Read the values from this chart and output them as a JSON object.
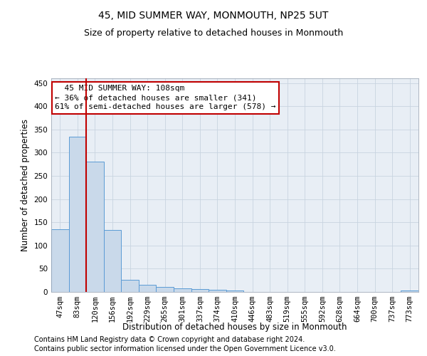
{
  "title": "45, MID SUMMER WAY, MONMOUTH, NP25 5UT",
  "subtitle": "Size of property relative to detached houses in Monmouth",
  "xlabel": "Distribution of detached houses by size in Monmouth",
  "ylabel": "Number of detached properties",
  "bar_labels": [
    "47sqm",
    "83sqm",
    "120sqm",
    "156sqm",
    "192sqm",
    "229sqm",
    "265sqm",
    "301sqm",
    "337sqm",
    "374sqm",
    "410sqm",
    "446sqm",
    "483sqm",
    "519sqm",
    "555sqm",
    "592sqm",
    "628sqm",
    "664sqm",
    "700sqm",
    "737sqm",
    "773sqm"
  ],
  "bar_values": [
    135,
    335,
    280,
    133,
    26,
    15,
    11,
    7,
    6,
    5,
    3,
    0,
    0,
    0,
    0,
    0,
    0,
    0,
    0,
    0,
    3
  ],
  "bar_color": "#c9d9ea",
  "bar_edge_color": "#5b9bd5",
  "vline_x": 1.5,
  "vline_color": "#c00000",
  "annotation_line1": "  45 MID SUMMER WAY: 108sqm",
  "annotation_line2": "← 36% of detached houses are smaller (341)",
  "annotation_line3": "61% of semi-detached houses are larger (578) →",
  "annotation_box_color": "#ffffff",
  "annotation_box_edgecolor": "#c00000",
  "ylim": [
    0,
    460
  ],
  "yticks": [
    0,
    50,
    100,
    150,
    200,
    250,
    300,
    350,
    400,
    450
  ],
  "footer1": "Contains HM Land Registry data © Crown copyright and database right 2024.",
  "footer2": "Contains public sector information licensed under the Open Government Licence v3.0.",
  "bg_color": "#ffffff",
  "plot_bg_color": "#e8eef5",
  "grid_color": "#c8d4e0",
  "title_fontsize": 10,
  "subtitle_fontsize": 9,
  "axis_label_fontsize": 8.5,
  "tick_fontsize": 7.5,
  "footer_fontsize": 7,
  "annotation_fontsize": 8
}
